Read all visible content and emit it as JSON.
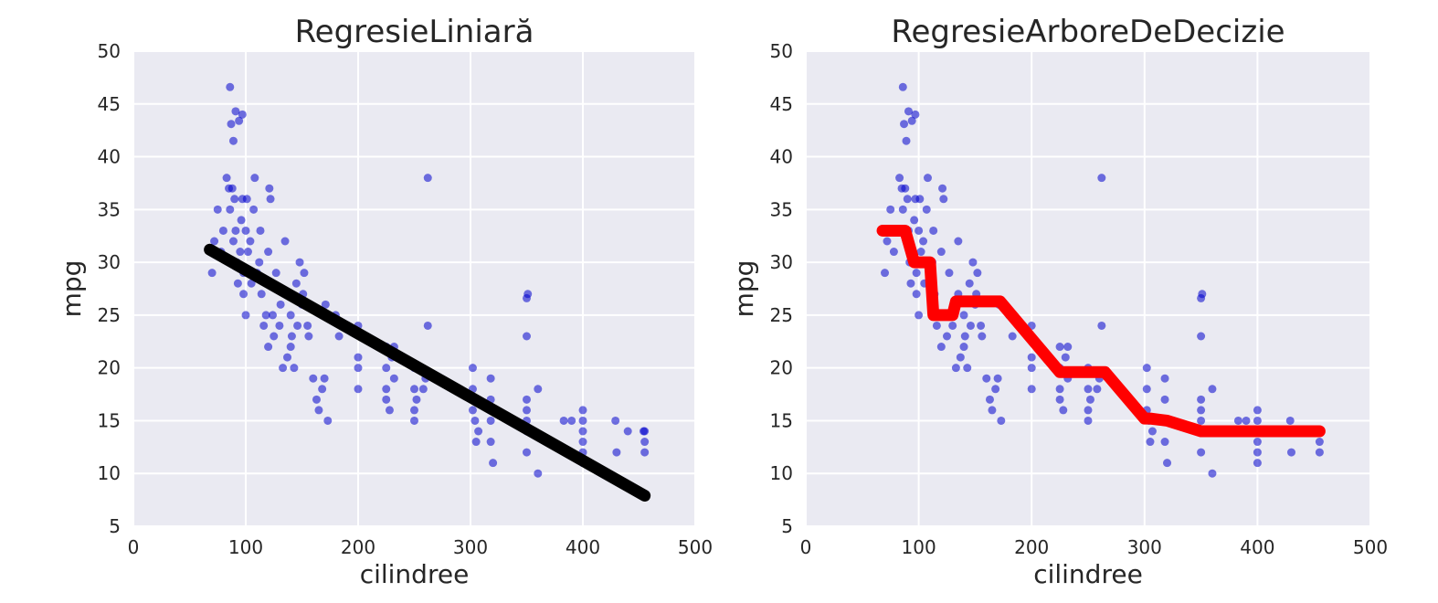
{
  "chart_data": [
    {
      "type": "scatter",
      "title": "RegresieLiniară",
      "xlabel": "cilindree",
      "ylabel": "mpg",
      "xlim": [
        0,
        500
      ],
      "ylim": [
        5,
        50
      ],
      "xticks": [
        "0",
        "100",
        "200",
        "300",
        "400",
        "500"
      ],
      "yticks": [
        "5",
        "10",
        "15",
        "20",
        "25",
        "30",
        "35",
        "40",
        "45",
        "50"
      ],
      "grid": true,
      "legend": "none",
      "colors": {
        "points": "#0000cc",
        "fit": "#000000",
        "background": "#eaeaf2"
      },
      "series": [
        {
          "kind": "scatter",
          "x": [
            70,
            72,
            75,
            78,
            80,
            83,
            85,
            86,
            88,
            89,
            90,
            91,
            92,
            93,
            95,
            96,
            97,
            98,
            98,
            100,
            100,
            101,
            102,
            104,
            105,
            107,
            108,
            110,
            112,
            113,
            114,
            116,
            118,
            120,
            120,
            121,
            122,
            124,
            125,
            127,
            130,
            131,
            133,
            135,
            135,
            137,
            140,
            140,
            141,
            143,
            145,
            146,
            148,
            150,
            151,
            152,
            155,
            156,
            160,
            163,
            165,
            168,
            170,
            171,
            173,
            180,
            183,
            200,
            200,
            200,
            200,
            225,
            225,
            225,
            225,
            228,
            230,
            232,
            232,
            250,
            250,
            250,
            250,
            252,
            258,
            260,
            262,
            302,
            302,
            302,
            304,
            305,
            307,
            318,
            318,
            318,
            318,
            320,
            350,
            350,
            350,
            350,
            350,
            351,
            360,
            360,
            383,
            390,
            400,
            400,
            400,
            400,
            400,
            400,
            429,
            430,
            440,
            454,
            455,
            455,
            455,
            86,
            91,
            97,
            89,
            87,
            94,
            262,
            350,
            350
          ],
          "y": [
            29,
            32,
            35,
            31,
            33,
            38,
            37,
            35,
            37,
            32,
            36,
            33,
            30,
            28,
            31,
            34,
            36,
            29,
            27,
            33,
            25,
            36,
            31,
            32,
            28,
            35,
            38,
            29,
            30,
            33,
            27,
            24,
            25,
            31,
            22,
            37,
            36,
            25,
            23,
            29,
            24,
            26,
            20,
            27,
            32,
            21,
            25,
            22,
            23,
            20,
            28,
            24,
            30,
            26,
            27,
            29,
            24,
            23,
            19,
            17,
            16,
            18,
            19,
            26,
            15,
            25,
            23,
            24,
            20,
            18,
            21,
            20,
            18,
            17,
            22,
            16,
            21,
            19,
            22,
            20,
            18,
            16,
            15,
            17,
            18,
            19,
            24,
            20,
            18,
            16,
            15,
            13,
            14,
            17,
            19,
            15,
            13,
            11,
            17,
            16,
            15,
            14,
            12,
            27,
            18,
            10,
            15,
            15,
            16,
            15,
            14,
            13,
            12,
            11,
            15,
            12,
            14,
            14,
            13,
            12,
            14,
            46.6,
            44.3,
            44,
            41.5,
            43.1,
            43.4,
            38,
            23,
            26.6
          ]
        },
        {
          "kind": "line",
          "name": "",
          "x": [
            68,
            455
          ],
          "y": [
            31.2,
            7.9
          ]
        }
      ]
    },
    {
      "type": "scatter",
      "title": "RegresieArboreDeDecizie",
      "xlabel": "cilindree",
      "ylabel": "mpg",
      "xlim": [
        0,
        500
      ],
      "ylim": [
        5,
        50
      ],
      "xticks": [
        "0",
        "100",
        "200",
        "300",
        "400",
        "500"
      ],
      "yticks": [
        "5",
        "10",
        "15",
        "20",
        "25",
        "30",
        "35",
        "40",
        "45",
        "50"
      ],
      "grid": true,
      "legend": "none",
      "colors": {
        "points": "#0000cc",
        "fit": "#ff0000",
        "background": "#eaeaf2"
      },
      "series": [
        {
          "kind": "scatter",
          "x": [
            70,
            72,
            75,
            78,
            80,
            83,
            85,
            86,
            88,
            89,
            90,
            91,
            92,
            93,
            95,
            96,
            97,
            98,
            98,
            100,
            100,
            101,
            102,
            104,
            105,
            107,
            108,
            110,
            112,
            113,
            114,
            116,
            118,
            120,
            120,
            121,
            122,
            124,
            125,
            127,
            130,
            131,
            133,
            135,
            135,
            137,
            140,
            140,
            141,
            143,
            145,
            146,
            148,
            150,
            151,
            152,
            155,
            156,
            160,
            163,
            165,
            168,
            170,
            171,
            173,
            180,
            183,
            200,
            200,
            200,
            200,
            225,
            225,
            225,
            225,
            228,
            230,
            232,
            232,
            250,
            250,
            250,
            250,
            252,
            258,
            260,
            262,
            302,
            302,
            302,
            304,
            305,
            307,
            318,
            318,
            318,
            318,
            320,
            350,
            350,
            350,
            350,
            350,
            351,
            360,
            360,
            383,
            390,
            400,
            400,
            400,
            400,
            400,
            400,
            429,
            430,
            440,
            454,
            455,
            455,
            455,
            86,
            91,
            97,
            89,
            87,
            94,
            262,
            350,
            350
          ],
          "y": [
            29,
            32,
            35,
            31,
            33,
            38,
            37,
            35,
            37,
            32,
            36,
            33,
            30,
            28,
            31,
            34,
            36,
            29,
            27,
            33,
            25,
            36,
            31,
            32,
            28,
            35,
            38,
            29,
            30,
            33,
            27,
            24,
            25,
            31,
            22,
            37,
            36,
            25,
            23,
            29,
            24,
            26,
            20,
            27,
            32,
            21,
            25,
            22,
            23,
            20,
            28,
            24,
            30,
            26,
            27,
            29,
            24,
            23,
            19,
            17,
            16,
            18,
            19,
            26,
            15,
            25,
            23,
            24,
            20,
            18,
            21,
            20,
            18,
            17,
            22,
            16,
            21,
            19,
            22,
            20,
            18,
            16,
            15,
            17,
            18,
            19,
            24,
            20,
            18,
            16,
            15,
            13,
            14,
            17,
            19,
            15,
            13,
            11,
            17,
            16,
            15,
            14,
            12,
            27,
            18,
            10,
            15,
            15,
            16,
            15,
            14,
            13,
            12,
            11,
            15,
            12,
            14,
            14,
            13,
            12,
            14,
            46.6,
            44.3,
            44,
            41.5,
            43.1,
            43.4,
            38,
            23,
            26.6
          ]
        },
        {
          "kind": "line",
          "name": "",
          "x": [
            68,
            88,
            96,
            100,
            110,
            113,
            115,
            130,
            133,
            140,
            165,
            172,
            225,
            228,
            262,
            265,
            300,
            305,
            320,
            350,
            440,
            455
          ],
          "y": [
            33.0,
            33.0,
            30.0,
            30.0,
            30.0,
            25.0,
            25.0,
            25.0,
            26.3,
            26.3,
            26.3,
            26.3,
            19.6,
            19.6,
            19.6,
            19.6,
            15.2,
            15.2,
            15.0,
            14.0,
            14.0,
            14.0
          ]
        }
      ]
    }
  ]
}
